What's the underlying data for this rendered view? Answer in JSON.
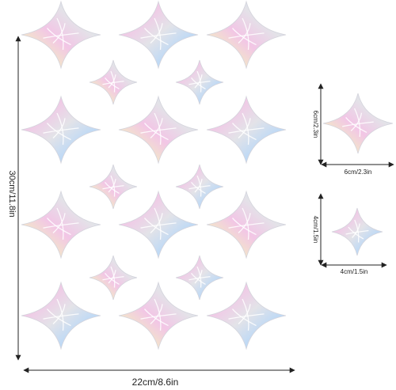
{
  "sheet": {
    "width_label": "22cm/8.6in",
    "height_label": "30cm/11.8in"
  },
  "detail_large": {
    "width_label": "6cm/2.3in",
    "height_label": "6cm/2.3in"
  },
  "detail_small": {
    "width_label": "4cm/1.5in",
    "height_label": "4cm/1.5in"
  },
  "colors": {
    "dimension_line": "#222222",
    "holo_pink": "#f2c6e6",
    "holo_blue": "#b9d8f7",
    "holo_yellow": "#f3ecc4",
    "holo_silver": "#e3e3e8"
  }
}
